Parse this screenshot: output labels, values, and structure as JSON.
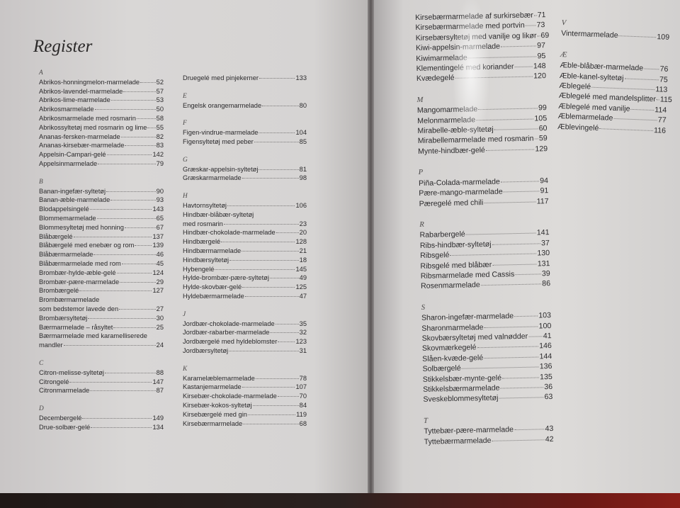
{
  "title": "Register",
  "columns": [
    [
      {
        "letter": "A",
        "entries": [
          {
            "text": "Abrikos-honningmelon-marmelade",
            "page": "52"
          },
          {
            "text": "Abrikos-lavendel-marmelade",
            "page": "57"
          },
          {
            "text": "Abrikos-lime-marmelade",
            "page": "53"
          },
          {
            "text": "Abrikosmarmelade",
            "page": "50"
          },
          {
            "text": "Abrikosmarmelade med rosmarin",
            "page": "58"
          },
          {
            "text": "Abrikossyltetøj med rosmarin og lime",
            "page": "55"
          },
          {
            "text": "Ananas-fersken-marmelade",
            "page": "82"
          },
          {
            "text": "Ananas-kirsebær-marmelade",
            "page": "83"
          },
          {
            "text": "Appelsin-Campari-gelé",
            "page": "142"
          },
          {
            "text": "Appelsinmarmelade",
            "page": "79"
          }
        ]
      },
      {
        "letter": "B",
        "entries": [
          {
            "text": "Banan-ingefær-syltetøj",
            "page": "90"
          },
          {
            "text": "Banan-æble-marmelade",
            "page": "93"
          },
          {
            "text": "Blodappelsingelé",
            "page": "143"
          },
          {
            "text": "Blommemarmelade",
            "page": "65"
          },
          {
            "text": "Blommesyltetøj med honning",
            "page": "67"
          },
          {
            "text": "Blåbærgelé",
            "page": "137"
          },
          {
            "text": "Blåbærgelé med enebær og rom",
            "page": "139"
          },
          {
            "text": "Blåbærmarmelade",
            "page": "46"
          },
          {
            "text": "Blåbærmarmelade med rom",
            "page": "45"
          },
          {
            "text": "Brombær-hylde-æble-gelé",
            "page": "124"
          },
          {
            "text": "Brombær-pære-marmelade",
            "page": "29"
          },
          {
            "text": "Brombærgelé",
            "page": "127"
          },
          {
            "first": "Brombærmarmelade",
            "text": "som bedstemor lavede den",
            "page": "27"
          },
          {
            "text": "Brombærsyltetøj",
            "page": "30"
          },
          {
            "text": "Bærmarmelade – råsyltet",
            "page": "25"
          },
          {
            "first": "Bærmarmelade med karamelliserede",
            "text": "mandler",
            "page": "24"
          }
        ]
      },
      {
        "letter": "C",
        "entries": [
          {
            "text": "Citron-melisse-syltetøj",
            "page": "88"
          },
          {
            "text": "Citrongelé",
            "page": "147"
          },
          {
            "text": "Citronmarmelade",
            "page": "87"
          }
        ]
      },
      {
        "letter": "D",
        "entries": [
          {
            "text": "Decembergelé",
            "page": "149"
          },
          {
            "text": "Drue-solbær-gelé",
            "page": "134"
          }
        ]
      }
    ],
    [
      {
        "letter": "",
        "entries": [
          {
            "text": "Druegelé med pinjekerner",
            "page": "133"
          }
        ]
      },
      {
        "letter": "E",
        "entries": [
          {
            "text": "Engelsk orangemarmelade",
            "page": "80"
          }
        ]
      },
      {
        "letter": "F",
        "entries": [
          {
            "text": "Figen-vindrue-marmelade",
            "page": "104"
          },
          {
            "text": "Figensyltetøj med peber",
            "page": "85"
          }
        ]
      },
      {
        "letter": "G",
        "entries": [
          {
            "text": "Græskar-appelsin-syltetøj",
            "page": "81"
          },
          {
            "text": "Græskarmarmelade",
            "page": "98"
          }
        ]
      },
      {
        "letter": "H",
        "entries": [
          {
            "text": "Havtornsyltetøj",
            "page": "106"
          },
          {
            "first": "Hindbær-blåbær-syltetøj",
            "text": "med rosmarin",
            "page": "23"
          },
          {
            "text": "Hindbær-chokolade-marmelade",
            "page": "20"
          },
          {
            "text": "Hindbærgelé",
            "page": "128"
          },
          {
            "text": "Hindbærmarmelade",
            "page": "21"
          },
          {
            "text": "Hindbærsyltetøj",
            "page": "18"
          },
          {
            "text": "Hybengelé",
            "page": "145"
          },
          {
            "text": "Hylde-brombær-pære-syltetøj",
            "page": "49"
          },
          {
            "text": "Hylde-skovbær-gelé",
            "page": "125"
          },
          {
            "text": "Hyldebærmarmelade",
            "page": "47"
          }
        ]
      },
      {
        "letter": "J",
        "entries": [
          {
            "text": "Jordbær-chokolade-marmelade",
            "page": "35"
          },
          {
            "text": "Jordbær-rabarber-marmelade",
            "page": "32"
          },
          {
            "text": "Jordbærgelé med hyldeblomster",
            "page": "123"
          },
          {
            "text": "Jordbærsyltetøj",
            "page": "31"
          }
        ]
      },
      {
        "letter": "K",
        "entries": [
          {
            "text": "Karamelæblemarmelade",
            "page": "78"
          },
          {
            "text": "Kastanjemarmelade",
            "page": "107"
          },
          {
            "text": "Kirsebær-chokolade-marmelade",
            "page": "70"
          },
          {
            "text": "Kirsebær-kokos-syltetøj",
            "page": "84"
          },
          {
            "text": "Kirsebærgelé med gin",
            "page": "119"
          },
          {
            "text": "Kirsebærmarmelade",
            "page": "68"
          }
        ]
      }
    ],
    [
      {
        "letter": "",
        "entries": [
          {
            "text": "Kirsebærmarmelade af surkirsebær",
            "page": "71"
          },
          {
            "text": "Kirsebærmarmelade med portvin",
            "page": "73"
          },
          {
            "text": "Kirsebærsyltetøj med vanilje og likør",
            "page": "69"
          },
          {
            "text": "Kiwi-appelsin-marmelade",
            "page": "97"
          },
          {
            "text": "Kiwimarmelade",
            "page": "95"
          },
          {
            "text": "Klementingelé med koriander",
            "page": "148"
          },
          {
            "text": "Kvædegelé",
            "page": "120"
          }
        ]
      },
      {
        "letter": "M",
        "entries": [
          {
            "text": "Mangomarmelade",
            "page": "99"
          },
          {
            "text": "Melonmarmelade",
            "page": "105"
          },
          {
            "text": "Mirabelle-æble-syltetøj",
            "page": "60"
          },
          {
            "text": "Mirabellemarmelade med rosmarin",
            "page": "59"
          },
          {
            "text": "Mynte-hindbær-gelé",
            "page": "129"
          }
        ]
      },
      {
        "letter": "P",
        "entries": [
          {
            "text": "Piña-Colada-marmelade",
            "page": "94"
          },
          {
            "text": "Pære-mango-marmelade",
            "page": "91"
          },
          {
            "text": "Pæregelé med chili",
            "page": "117"
          }
        ]
      },
      {
        "letter": "R",
        "entries": [
          {
            "text": "Rabarbergelé",
            "page": "141"
          },
          {
            "text": "Ribs-hindbær-syltetøj",
            "page": "37"
          },
          {
            "text": "Ribsgelé",
            "page": "130"
          },
          {
            "text": "Ribsgelé med blåbær",
            "page": "131"
          },
          {
            "text": "Ribsmarmelade med Cassis",
            "page": "39"
          },
          {
            "text": "Rosenmarmelade",
            "page": "86"
          }
        ]
      },
      {
        "letter": "S",
        "entries": [
          {
            "text": "Sharon-ingefær-marmelade",
            "page": "103"
          },
          {
            "text": "Sharonmarmelade",
            "page": "100"
          },
          {
            "text": "Skovbærsyltetøj med valnødder",
            "page": "41"
          },
          {
            "text": "Skovmærkegelé",
            "page": "146"
          },
          {
            "text": "Slåen-kvæde-gelé",
            "page": "144"
          },
          {
            "text": "Solbærgelé",
            "page": "136"
          },
          {
            "text": "Stikkelsbær-mynte-gelé",
            "page": "135"
          },
          {
            "text": "Stikkelsbærmarmelade",
            "page": "36"
          },
          {
            "text": "Sveskeblommesyltetøj",
            "page": "63"
          }
        ]
      },
      {
        "letter": "T",
        "entries": [
          {
            "text": "Tyttebær-pære-marmelade",
            "page": "43"
          },
          {
            "text": "Tyttebærmarmelade",
            "page": "42"
          }
        ]
      }
    ],
    [
      {
        "letter": "V",
        "entries": [
          {
            "text": "Vintermarmelade",
            "page": "109"
          }
        ]
      },
      {
        "letter": "Æ",
        "entries": [
          {
            "text": "Æble-blåbær-marmelade",
            "page": "76"
          },
          {
            "text": "Æble-kanel-syltetøj",
            "page": "75"
          },
          {
            "text": "Æblegelé",
            "page": "113"
          },
          {
            "text": "Æblegelé med mandelsplitter",
            "page": "115"
          },
          {
            "text": "Æblegelé med vanilje",
            "page": "114"
          },
          {
            "text": "Æblemarmelade",
            "page": "77"
          },
          {
            "text": "Æblevingelé",
            "page": "116"
          }
        ]
      }
    ]
  ]
}
